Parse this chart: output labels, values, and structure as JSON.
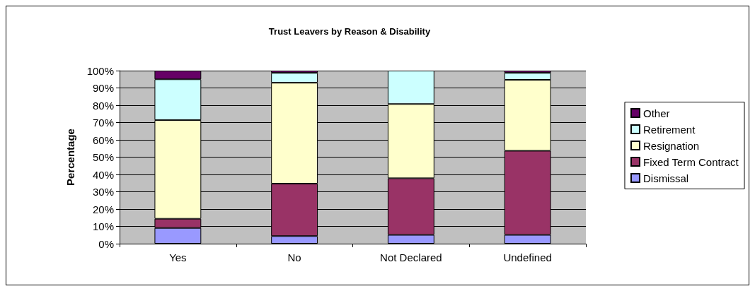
{
  "chart_data": {
    "type": "bar",
    "title": "Trust Leavers by Reason & Disability",
    "ylabel": "Percentage",
    "categories": [
      "Yes",
      "No",
      "Not Declared",
      "Undefined"
    ],
    "stacked": true,
    "ylim": [
      0,
      100
    ],
    "yticks": [
      {
        "value": 0,
        "label": "0%"
      },
      {
        "value": 10,
        "label": "10%"
      },
      {
        "value": 20,
        "label": "20%"
      },
      {
        "value": 30,
        "label": "30%"
      },
      {
        "value": 40,
        "label": "40%"
      },
      {
        "value": 50,
        "label": "50%"
      },
      {
        "value": 60,
        "label": "60%"
      },
      {
        "value": 70,
        "label": "70%"
      },
      {
        "value": 80,
        "label": "80%"
      },
      {
        "value": 90,
        "label": "90%"
      },
      {
        "value": 100,
        "label": "100%"
      }
    ],
    "grid": "y",
    "legend": "right",
    "series": [
      {
        "name": "Dismissal",
        "color": "#9999ff",
        "values": [
          9.1,
          4.4,
          5.1,
          5.1
        ]
      },
      {
        "name": "Fixed Term Contract",
        "color": "#993366",
        "values": [
          5.3,
          30.3,
          32.7,
          48.6
        ]
      },
      {
        "name": "Resignation",
        "color": "#ffffcc",
        "values": [
          57,
          58.3,
          42.9,
          41
        ]
      },
      {
        "name": "Retirement",
        "color": "#ccffff",
        "values": [
          23.6,
          5.7,
          19.3,
          4
        ]
      },
      {
        "name": "Other",
        "color": "#660066",
        "values": [
          5,
          1.3,
          null,
          1.3
        ]
      }
    ]
  }
}
